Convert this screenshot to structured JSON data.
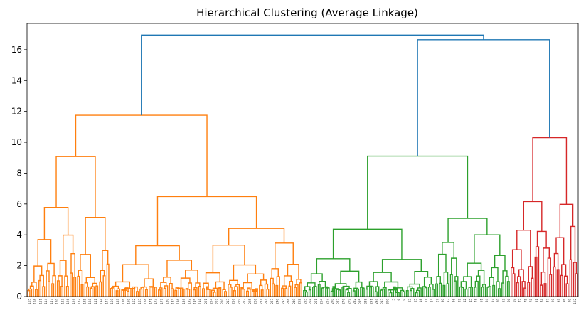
{
  "chart_data": {
    "type": "dendrogram",
    "title": "Hierarchical Clustering (Average Linkage)",
    "xlabel": "",
    "ylabel": "",
    "ylim": [
      0,
      17.7
    ],
    "yticks": [
      0,
      2,
      4,
      6,
      8,
      10,
      12,
      14,
      16
    ],
    "grid": false,
    "legend": "none",
    "colors": {
      "above_threshold": "#1f77b4",
      "cluster_1": "#ff7f0e",
      "cluster_2": "#2ca02c",
      "cluster_3": "#d62728"
    },
    "leaf_count": 300,
    "clusters": [
      {
        "color": "#ff7f0e",
        "leaves": 150,
        "merge_height": 11.75
      },
      {
        "color": "#2ca02c",
        "leaves": 113,
        "merge_height": 9.1
      },
      {
        "color": "#d62728",
        "leaves": 37,
        "merge_height": 10.3
      }
    ],
    "top_merges": [
      {
        "height": 16.65,
        "joins": [
          "cluster_2",
          "cluster_3"
        ]
      },
      {
        "height": 16.95,
        "joins": [
          "cluster_1",
          "cluster_2+cluster_3"
        ]
      }
    ],
    "leaf_labels": [
      "105",
      "108",
      "111",
      "114",
      "117",
      "120",
      "123",
      "126",
      "129",
      "132",
      "135",
      "138",
      "141",
      "144",
      "147",
      "150",
      "153",
      "156",
      "159",
      "162",
      "165",
      "168",
      "171",
      "174",
      "177",
      "180",
      "183",
      "186",
      "189",
      "192",
      "195",
      "198",
      "201",
      "204",
      "207",
      "210",
      "213",
      "216",
      "219",
      "222",
      "225",
      "228",
      "231",
      "234",
      "237",
      "240",
      "243",
      "246",
      "249",
      "252",
      "255",
      "258",
      "261",
      "264",
      "267",
      "270",
      "273",
      "276",
      "279",
      "282",
      "285",
      "288",
      "291",
      "294",
      "297",
      "300",
      "3",
      "6",
      "9",
      "12",
      "15",
      "18",
      "21",
      "24",
      "27",
      "30",
      "33",
      "36",
      "39",
      "42",
      "45",
      "48",
      "51",
      "54",
      "57",
      "60",
      "63",
      "66",
      "69",
      "72",
      "75",
      "78",
      "81",
      "84",
      "87",
      "90",
      "93",
      "96",
      "99",
      "102"
    ]
  }
}
